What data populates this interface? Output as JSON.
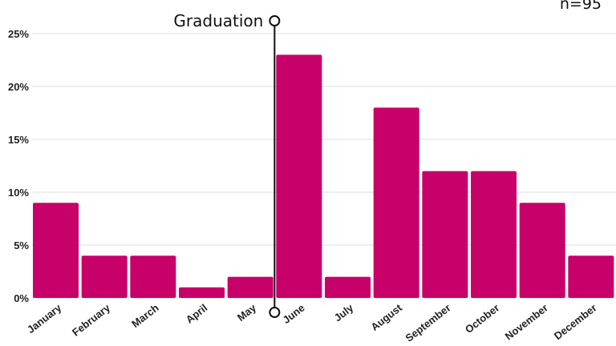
{
  "chart_data": {
    "type": "bar",
    "categories": [
      "January",
      "February",
      "March",
      "April",
      "May",
      "June",
      "July",
      "August",
      "September",
      "October",
      "November",
      "December"
    ],
    "values": [
      9,
      4,
      4,
      1,
      2,
      23,
      2,
      18,
      12,
      12,
      9,
      4
    ],
    "y_tick_labels": [
      "0%",
      "5%",
      "10%",
      "15%",
      "20%",
      "25%"
    ],
    "y_tick_values": [
      0,
      5,
      10,
      15,
      20,
      25
    ],
    "ylim": [
      0,
      25
    ],
    "grid": true,
    "annotation": {
      "label": "Graduation",
      "between": [
        "May",
        "June"
      ]
    },
    "sample_size_label": "n=95",
    "colors": {
      "bar": "#c8006a",
      "grid": "#dddddd",
      "text": "#222222",
      "annotation_line": "#111111"
    }
  }
}
